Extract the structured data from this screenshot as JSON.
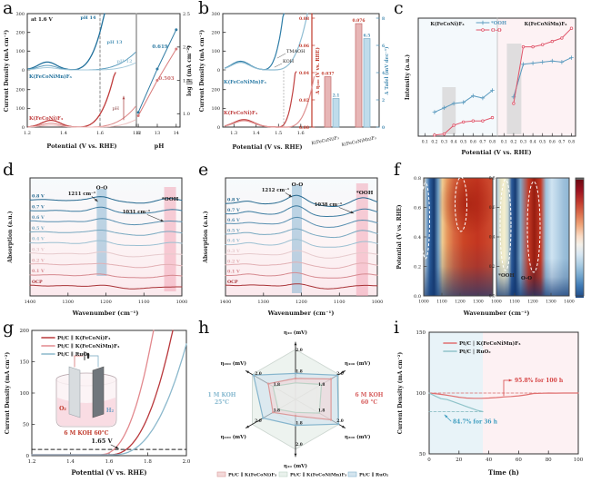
{
  "figure": {
    "panel_letters": [
      "a",
      "b",
      "c",
      "d",
      "e",
      "f",
      "g",
      "h",
      "i"
    ]
  },
  "chart_data": [
    {
      "panel": "a",
      "type": "line",
      "left": {
        "note": "at 1.6 V",
        "xlabel": "Potential (V vs. RHE)",
        "xticks": [
          "1.2",
          "1.4",
          "1.6",
          "1.8"
        ],
        "ylabel": "Current Density (mA cm⁻²)",
        "yticks_top": [
          "300",
          "200",
          "100",
          "0"
        ],
        "yticks_bottom": [
          "200",
          "100",
          "0"
        ],
        "series_top_label": "K(FeCoNiMn)F₃",
        "series_bottom_label": "K(FeCoNi)F₃",
        "curve_labels": [
          "pH 14",
          "pH 13",
          "pH 12"
        ],
        "arrow_label": "pH",
        "dashed_line_x": 1.6,
        "top_curves": [
          {
            "on": 1.43,
            "xe": 1.63,
            "ye": 330,
            "b": 42
          },
          {
            "on": 1.5,
            "xe": 1.82,
            "ye": 120,
            "b": 24
          },
          {
            "on": 1.55,
            "xe": 1.84,
            "ye": 62,
            "b": 12
          }
        ],
        "bottom_curves": [
          {
            "on": 1.47,
            "xe": 1.685,
            "ye": 310,
            "b": 36
          },
          {
            "on": 1.52,
            "xe": 1.82,
            "ye": 142,
            "b": 20
          },
          {
            "on": 1.56,
            "xe": 1.84,
            "ye": 66,
            "b": 10
          }
        ],
        "blue_colors": [
          "#1f6f9b",
          "#5b9cbd",
          "#a6cbdc"
        ],
        "red_colors": [
          "#bf3b3b",
          "#dc8585",
          "#eec0c0"
        ]
      },
      "right": {
        "xlabel": "pH",
        "xticks": [
          "12",
          "13",
          "14"
        ],
        "ylabel": "log |j| (mA cm⁻²)",
        "yticks": [
          "1.0",
          "1.5",
          "2.0",
          "2.5"
        ],
        "x": [
          12,
          13,
          14
        ],
        "series": [
          {
            "name": "K(FeCoNiMn)F₃",
            "slope": "0.619",
            "y": [
              1.02,
              1.67,
              2.26
            ],
            "color": "#2f7ba3"
          },
          {
            "name": "K(FeCoNi)F₃",
            "slope": "0.503",
            "y": [
              0.97,
              1.5,
              1.97
            ],
            "color": "#d87a7a"
          }
        ]
      }
    },
    {
      "panel": "b",
      "type": "line+bar",
      "left": {
        "xlabel": "Potential (V vs. RHE)",
        "xticks": [
          "1.3",
          "1.4",
          "1.5",
          "1.6"
        ],
        "ylabel": "Current Density (mA cm⁻²)",
        "yticks_top": [
          "300",
          "200",
          "100",
          "0"
        ],
        "yticks_bottom": [
          "200",
          "100",
          "0"
        ],
        "top_label": "K(FeCoNiMn)F₃",
        "bottom_label": "K(FeCoNi)F₃",
        "curve_tags": [
          "TMAOH",
          "KOH"
        ],
        "blue_colors": [
          "#2e7da7",
          "#8fbdd3"
        ],
        "red_colors": [
          "#c04040",
          "#de9090"
        ]
      },
      "right": {
        "categories": [
          "K(FeCoNi)F₃",
          "K(FeCoNiMn)F₃"
        ],
        "red_axis": {
          "label": "Δ η₁₀₀ (V vs. RHE)",
          "ticks": [
            "0.00",
            "0.02",
            "0.04",
            "0.06",
            "0.08"
          ],
          "max": 0.08,
          "color": "#c0392b"
        },
        "blue_axis": {
          "label": "Δ Tafel (mV dec⁻¹)",
          "ticks": [
            "0",
            "2",
            "4",
            "6",
            "8"
          ],
          "max": 8,
          "color": "#4b8fb4"
        },
        "red_values": [
          0.037,
          0.076
        ],
        "blue_values": [
          2.1,
          6.5
        ],
        "red_value_labels": [
          "0.037",
          "0.076"
        ],
        "blue_value_labels": [
          "2.1",
          "6.5"
        ]
      }
    },
    {
      "panel": "c",
      "type": "line",
      "xlabel": "Potential (V vs. RHE)",
      "ylabel": "Intensity (a.u.)",
      "xticks": [
        "0.1",
        "0.2",
        "0.3",
        "0.4",
        "0.5",
        "0.6",
        "0.7",
        "0.8"
      ],
      "x": [
        0.2,
        0.3,
        0.4,
        0.5,
        0.6,
        0.7,
        0.8
      ],
      "legend": [
        {
          "label": "*OOH",
          "color": "#5b9bbf"
        },
        {
          "label": "O-O",
          "color": "#e0556a"
        }
      ],
      "halves": [
        {
          "label": "K(FeCoNi)F₃",
          "band": [
            0.28,
            0.42
          ],
          "ooh": [
            0.22,
            0.26,
            0.3,
            0.31,
            0.37,
            0.35,
            0.42
          ],
          "oo": [
            0.01,
            0.02,
            0.1,
            0.13,
            0.14,
            0.14,
            0.17
          ]
        },
        {
          "label": "K(FeCoNiMn)F₃",
          "band": [
            0.13,
            0.28
          ],
          "ooh": [
            0.36,
            0.66,
            0.67,
            0.68,
            0.69,
            0.68,
            0.72
          ],
          "oo": [
            0.3,
            0.82,
            0.82,
            0.84,
            0.87,
            0.9,
            0.99
          ]
        }
      ]
    },
    {
      "panel": "d",
      "type": "line",
      "xlabel": "Wavenumber (cm⁻¹)",
      "ylabel": "Absorption (a.u.)",
      "xticks": [
        "1400",
        "1300",
        "1200",
        "1100",
        "1000"
      ],
      "curve_labels": [
        "0.8 V",
        "0.7 V",
        "0.6 V",
        "0.5 V",
        "0.4 V",
        "0.3 V",
        "0.2 V",
        "0.1 V",
        "OCP"
      ],
      "peak1": 1211,
      "peak2": 1031,
      "annotations": {
        "peak1": "1211 cm⁻¹",
        "band1": "O-O",
        "peak2": "1031 cm⁻¹",
        "band2": "*OOH"
      },
      "colors": [
        "#25688f",
        "#3c7ba0",
        "#588fb0",
        "#78a8c0",
        "#9cc0d2",
        "#e6cacd",
        "#e2b0b4",
        "#d68a90",
        "#a93438"
      ]
    },
    {
      "panel": "e",
      "type": "line",
      "xlabel": "Wavenumber (cm⁻¹)",
      "ylabel": "Absorption (a.u.)",
      "xticks": [
        "1400",
        "1300",
        "1200",
        "1100",
        "1000"
      ],
      "curve_labels": [
        "0.8 V",
        "0.7 V",
        "0.6 V",
        "0.5 V",
        "0.4 V",
        "0.3 V",
        "0.2 V",
        "0.1 V",
        "OCP"
      ],
      "peak1": 1212,
      "peak2": 1038,
      "annotations": {
        "peak1": "1212 cm⁻¹",
        "band1": "O-O",
        "peak2": "1038 cm⁻¹",
        "band2": "*OOH"
      },
      "colors": [
        "#25688f",
        "#3c7ba0",
        "#588fb0",
        "#78a8c0",
        "#9cc0d2",
        "#e6cacd",
        "#e2b0b4",
        "#d68a90",
        "#a93438"
      ]
    },
    {
      "panel": "f",
      "type": "heatmap",
      "ylabel": "Potential (V vs. RHE)",
      "xlabel": "Wavenumber (cm⁻¹)",
      "yticks": [
        "0.0",
        "0.2",
        "0.4",
        "0.6",
        "0.8"
      ],
      "left_xticks": [
        "1000",
        "1100",
        "1200",
        "1300"
      ],
      "right_xticks": [
        "1000",
        "1100",
        "1200",
        "1300",
        "1400"
      ],
      "labels": {
        "ooh": "*OOH",
        "oo": "O-O"
      },
      "hot_color": "#971d10",
      "cold_color": "#173d74"
    },
    {
      "panel": "g",
      "type": "line",
      "xlabel": "Potential (V vs. RHE)",
      "ylabel": "Current Density (mA cm⁻²)",
      "xticks": [
        "1.2",
        "1.4",
        "1.6",
        "1.8",
        "2.0"
      ],
      "yticks": [
        "0",
        "50",
        "100",
        "150",
        "200"
      ],
      "legend": [
        {
          "label": "Pt/C ∥ K(FeCoNi)F₃",
          "color": "#b9383c"
        },
        {
          "label": "Pt/C ∥ K(FeCoNiMn)F₃",
          "color": "#e2888d"
        },
        {
          "label": "Pt/C ∥ RuO₂",
          "color": "#8bb8cc"
        }
      ],
      "curves": [
        {
          "name": "K(FeCoNiMn)F₃",
          "onset": 1.55,
          "span": 0.28,
          "color": "#e2888d"
        },
        {
          "name": "K(FeCoNi)F₃",
          "onset": 1.6,
          "span": 0.33,
          "color": "#b9383c"
        },
        {
          "name": "RuO₂",
          "onset": 1.62,
          "span": 0.4,
          "color": "#8bb8cc"
        }
      ],
      "dashed_y": 10,
      "annotation": "1.65 V",
      "inset": {
        "electrolyte": "6 M KOH 60°C",
        "left_gas": "O₂",
        "right_gas": "H₂"
      }
    },
    {
      "panel": "h",
      "type": "radar",
      "axes": [
        "η₁₀ (mV)",
        "η₁₀₀ (mV)",
        "η₂₀₀ (mV)",
        "η₁₀ (mV)",
        "η₁₀₀ (mV)",
        "η₂₀₀ (mV)"
      ],
      "ring_labels": [
        "1.8",
        "2.0"
      ],
      "left_condition": [
        "1 M KOH",
        "25°C"
      ],
      "left_color": "#85b8cf",
      "right_condition": [
        "6 M KOH",
        "60 °C"
      ],
      "right_color": "#d65c5c",
      "series": [
        {
          "name": "Pt/C ∥ K(FeCoNi)F₃",
          "fill": "#f3d9d9",
          "stroke": "#db9a9a",
          "values": [
            0.42,
            0.82,
            0.82,
            0.33,
            0.52,
            0.63
          ]
        },
        {
          "name": "Pt/C ∥ K(FeCoNiMn)F₃",
          "fill": "#e9f1ec",
          "stroke": "#bcd2c6",
          "values": [
            0.33,
            0.6,
            0.55,
            0.26,
            0.4,
            0.52
          ]
        },
        {
          "name": "Pt/C ∥ RuO₂",
          "fill": "#d3e4ee",
          "stroke": "#86b5cd",
          "values": [
            0.52,
            0.97,
            0.99,
            0.52,
            0.75,
            0.97
          ]
        }
      ]
    },
    {
      "panel": "i",
      "type": "line",
      "xlabel": "Time (h)",
      "ylabel": "Current Density (mA cm⁻²)",
      "xticks": [
        "0",
        "20",
        "40",
        "60",
        "80",
        "100"
      ],
      "yticks": [
        "50",
        "100",
        "150"
      ],
      "legend": [
        {
          "label": "Pt/C | K(FeCoNiMn)F₃",
          "color": "#e07070"
        },
        {
          "label": "Pt/C | RuO₂",
          "color": "#8fc3c9"
        }
      ],
      "series": [
        {
          "name": "Pt/C | K(FeCoNiMn)F₃",
          "color": "#e07070",
          "x": [
            0,
            5,
            10,
            15,
            20,
            25,
            30,
            35,
            40,
            45,
            50,
            55,
            60,
            65,
            70,
            75,
            80,
            85,
            90,
            95,
            100
          ],
          "y": [
            100,
            99.3,
            98.6,
            97.6,
            96.6,
            95.9,
            95.7,
            95.7,
            95.9,
            96.3,
            96.8,
            97.2,
            97.7,
            98.5,
            99.6,
            99.8,
            100,
            99.9,
            100,
            100,
            100
          ]
        },
        {
          "name": "Pt/C | RuO₂",
          "color": "#8fc3c9",
          "x": [
            0,
            4,
            8,
            12,
            16,
            20,
            24,
            28,
            32,
            36
          ],
          "y": [
            100,
            97.5,
            95.4,
            94.6,
            93,
            91.2,
            89.3,
            87.6,
            85.9,
            84.7
          ]
        }
      ],
      "annotations": [
        {
          "text": "95.8%  for 100 h",
          "color": "#d64545"
        },
        {
          "text": "84.7% for 36 h",
          "color": "#3f9ec0"
        }
      ],
      "region_split_h": 36
    }
  ]
}
